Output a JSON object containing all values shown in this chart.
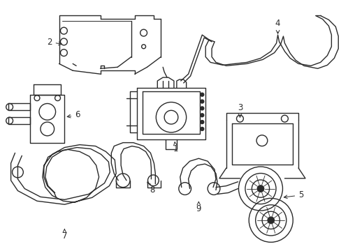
{
  "background_color": "#ffffff",
  "line_color": "#2a2a2a",
  "line_width": 1.0,
  "label_fontsize": 8.5,
  "figsize": [
    4.89,
    3.6
  ],
  "dpi": 100
}
